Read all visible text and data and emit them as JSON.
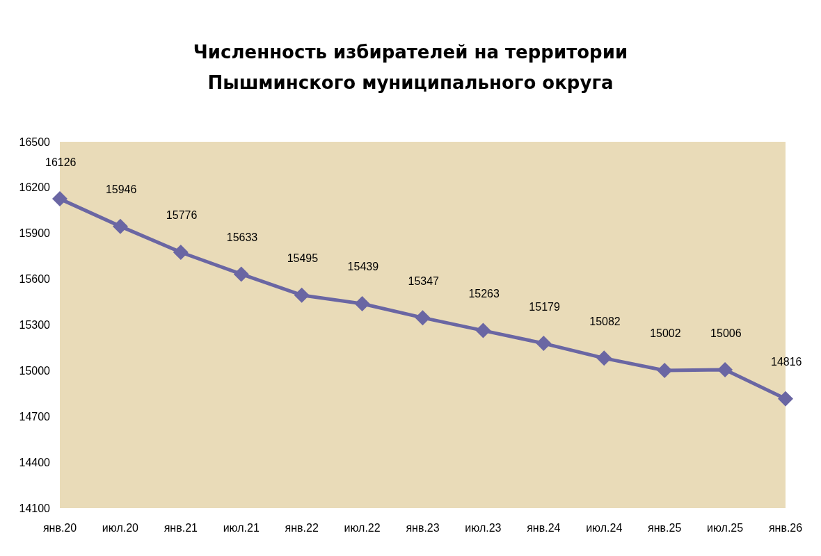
{
  "chart_data": {
    "type": "line",
    "title": "Численность избирателей на территории\nПышминского муниципального округа",
    "categories": [
      "янв.20",
      "июл.20",
      "янв.21",
      "июл.21",
      "янв.22",
      "июл.22",
      "янв.23",
      "июл.23",
      "янв.24",
      "июл.24",
      "янв.25",
      "июл.25",
      "янв.26"
    ],
    "series": [
      {
        "color": "#6a66a3",
        "values": [
          16126,
          15946,
          15776,
          15633,
          15495,
          15439,
          15347,
          15263,
          15179,
          15082,
          15002,
          15006,
          14816
        ]
      }
    ],
    "ylim": [
      14100,
      16500
    ],
    "yticks": [
      14100,
      14400,
      14700,
      15000,
      15300,
      15600,
      15900,
      16200,
      16500
    ],
    "grid": false,
    "marker": "diamond",
    "line_style": "solid",
    "data_labels": true
  }
}
